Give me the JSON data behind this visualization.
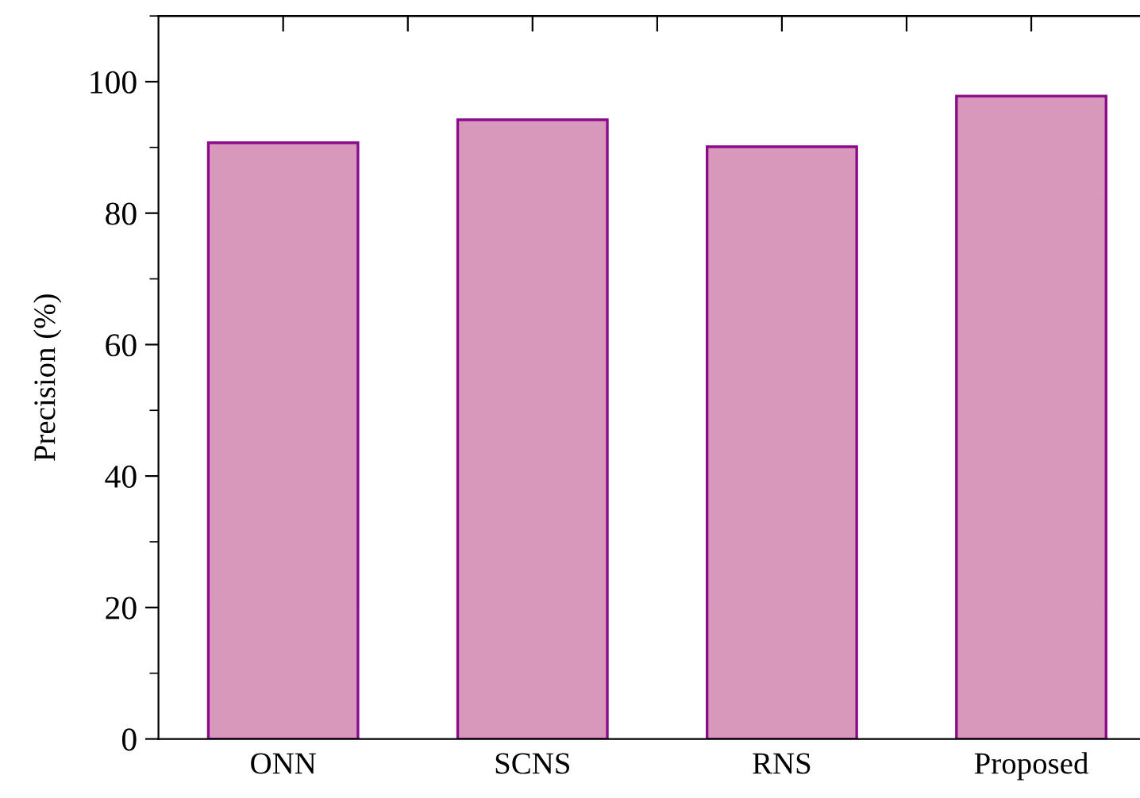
{
  "chart_data": {
    "type": "bar",
    "ylabel": "Precision (%)",
    "categories": [
      "ONN",
      "SCNS",
      "RNS",
      "Proposed"
    ],
    "values": [
      90.7,
      94.2,
      90.1,
      97.8
    ],
    "color": "#d898bb",
    "ylim": [
      0,
      110
    ],
    "yticks": [
      0,
      20,
      40,
      60,
      80,
      100
    ],
    "grid": false,
    "legend": false
  }
}
